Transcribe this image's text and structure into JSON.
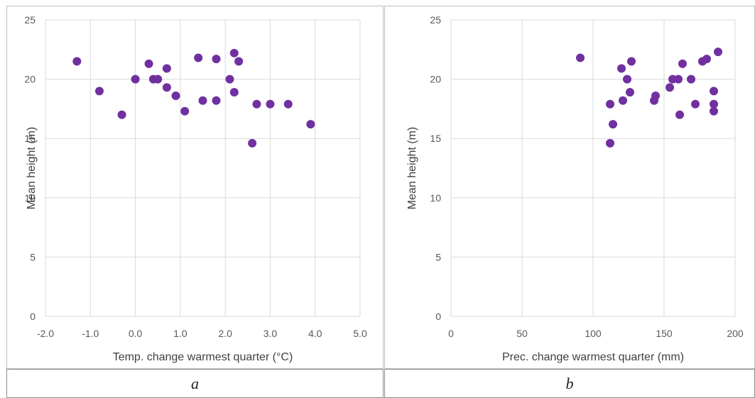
{
  "captions": {
    "a": "a",
    "b": "b"
  },
  "colors": {
    "marker": "#7030a0",
    "grid": "#d9d9d9",
    "axis_text": "#595959"
  },
  "chart_data": [
    {
      "type": "scatter",
      "title": "",
      "xlabel": "Temp. change warmest quarter (°C)",
      "ylabel": "Mean height (m)",
      "xlim": [
        -2.0,
        5.0
      ],
      "ylim": [
        0,
        25
      ],
      "x_ticks": [
        "-2.0",
        "-1.0",
        "0.0",
        "1.0",
        "2.0",
        "3.0",
        "4.0",
        "5.0"
      ],
      "y_ticks": [
        "0",
        "5",
        "10",
        "15",
        "20",
        "25"
      ],
      "grid": true,
      "legend": "none",
      "points": [
        {
          "x": -1.3,
          "y": 21.5
        },
        {
          "x": -0.8,
          "y": 19.0
        },
        {
          "x": -0.3,
          "y": 17.0
        },
        {
          "x": 0.0,
          "y": 20.0
        },
        {
          "x": 0.3,
          "y": 21.3
        },
        {
          "x": 0.4,
          "y": 20.0
        },
        {
          "x": 0.5,
          "y": 20.0
        },
        {
          "x": 0.7,
          "y": 20.9
        },
        {
          "x": 0.7,
          "y": 19.3
        },
        {
          "x": 0.9,
          "y": 18.6
        },
        {
          "x": 1.1,
          "y": 17.3
        },
        {
          "x": 1.4,
          "y": 21.8
        },
        {
          "x": 1.5,
          "y": 18.2
        },
        {
          "x": 1.8,
          "y": 21.7
        },
        {
          "x": 1.8,
          "y": 18.2
        },
        {
          "x": 2.1,
          "y": 20.0
        },
        {
          "x": 2.2,
          "y": 22.2
        },
        {
          "x": 2.2,
          "y": 18.9
        },
        {
          "x": 2.3,
          "y": 21.5
        },
        {
          "x": 2.6,
          "y": 14.6
        },
        {
          "x": 2.7,
          "y": 17.9
        },
        {
          "x": 3.0,
          "y": 17.9
        },
        {
          "x": 3.4,
          "y": 17.9
        },
        {
          "x": 3.9,
          "y": 16.2
        }
      ]
    },
    {
      "type": "scatter",
      "title": "",
      "xlabel": "Prec. change warmest quarter (mm)",
      "ylabel": "Mean height (m)",
      "xlim": [
        0,
        200
      ],
      "ylim": [
        0,
        25
      ],
      "x_ticks": [
        "0",
        "50",
        "100",
        "150",
        "200"
      ],
      "y_ticks": [
        "0",
        "5",
        "10",
        "15",
        "20",
        "25"
      ],
      "grid": true,
      "legend": "none",
      "points": [
        {
          "x": 91,
          "y": 21.8
        },
        {
          "x": 112,
          "y": 17.9
        },
        {
          "x": 112,
          "y": 14.6
        },
        {
          "x": 114,
          "y": 16.2
        },
        {
          "x": 120,
          "y": 20.9
        },
        {
          "x": 121,
          "y": 18.2
        },
        {
          "x": 124,
          "y": 20.0
        },
        {
          "x": 126,
          "y": 18.9
        },
        {
          "x": 127,
          "y": 21.5
        },
        {
          "x": 143,
          "y": 18.2
        },
        {
          "x": 144,
          "y": 18.6
        },
        {
          "x": 154,
          "y": 19.3
        },
        {
          "x": 156,
          "y": 20.0
        },
        {
          "x": 160,
          "y": 20.0
        },
        {
          "x": 161,
          "y": 17.0
        },
        {
          "x": 163,
          "y": 21.3
        },
        {
          "x": 169,
          "y": 20.0
        },
        {
          "x": 172,
          "y": 17.9
        },
        {
          "x": 177,
          "y": 21.5
        },
        {
          "x": 180,
          "y": 21.7
        },
        {
          "x": 185,
          "y": 19.0
        },
        {
          "x": 185,
          "y": 17.9
        },
        {
          "x": 185,
          "y": 17.3
        },
        {
          "x": 188,
          "y": 22.3
        }
      ]
    }
  ]
}
